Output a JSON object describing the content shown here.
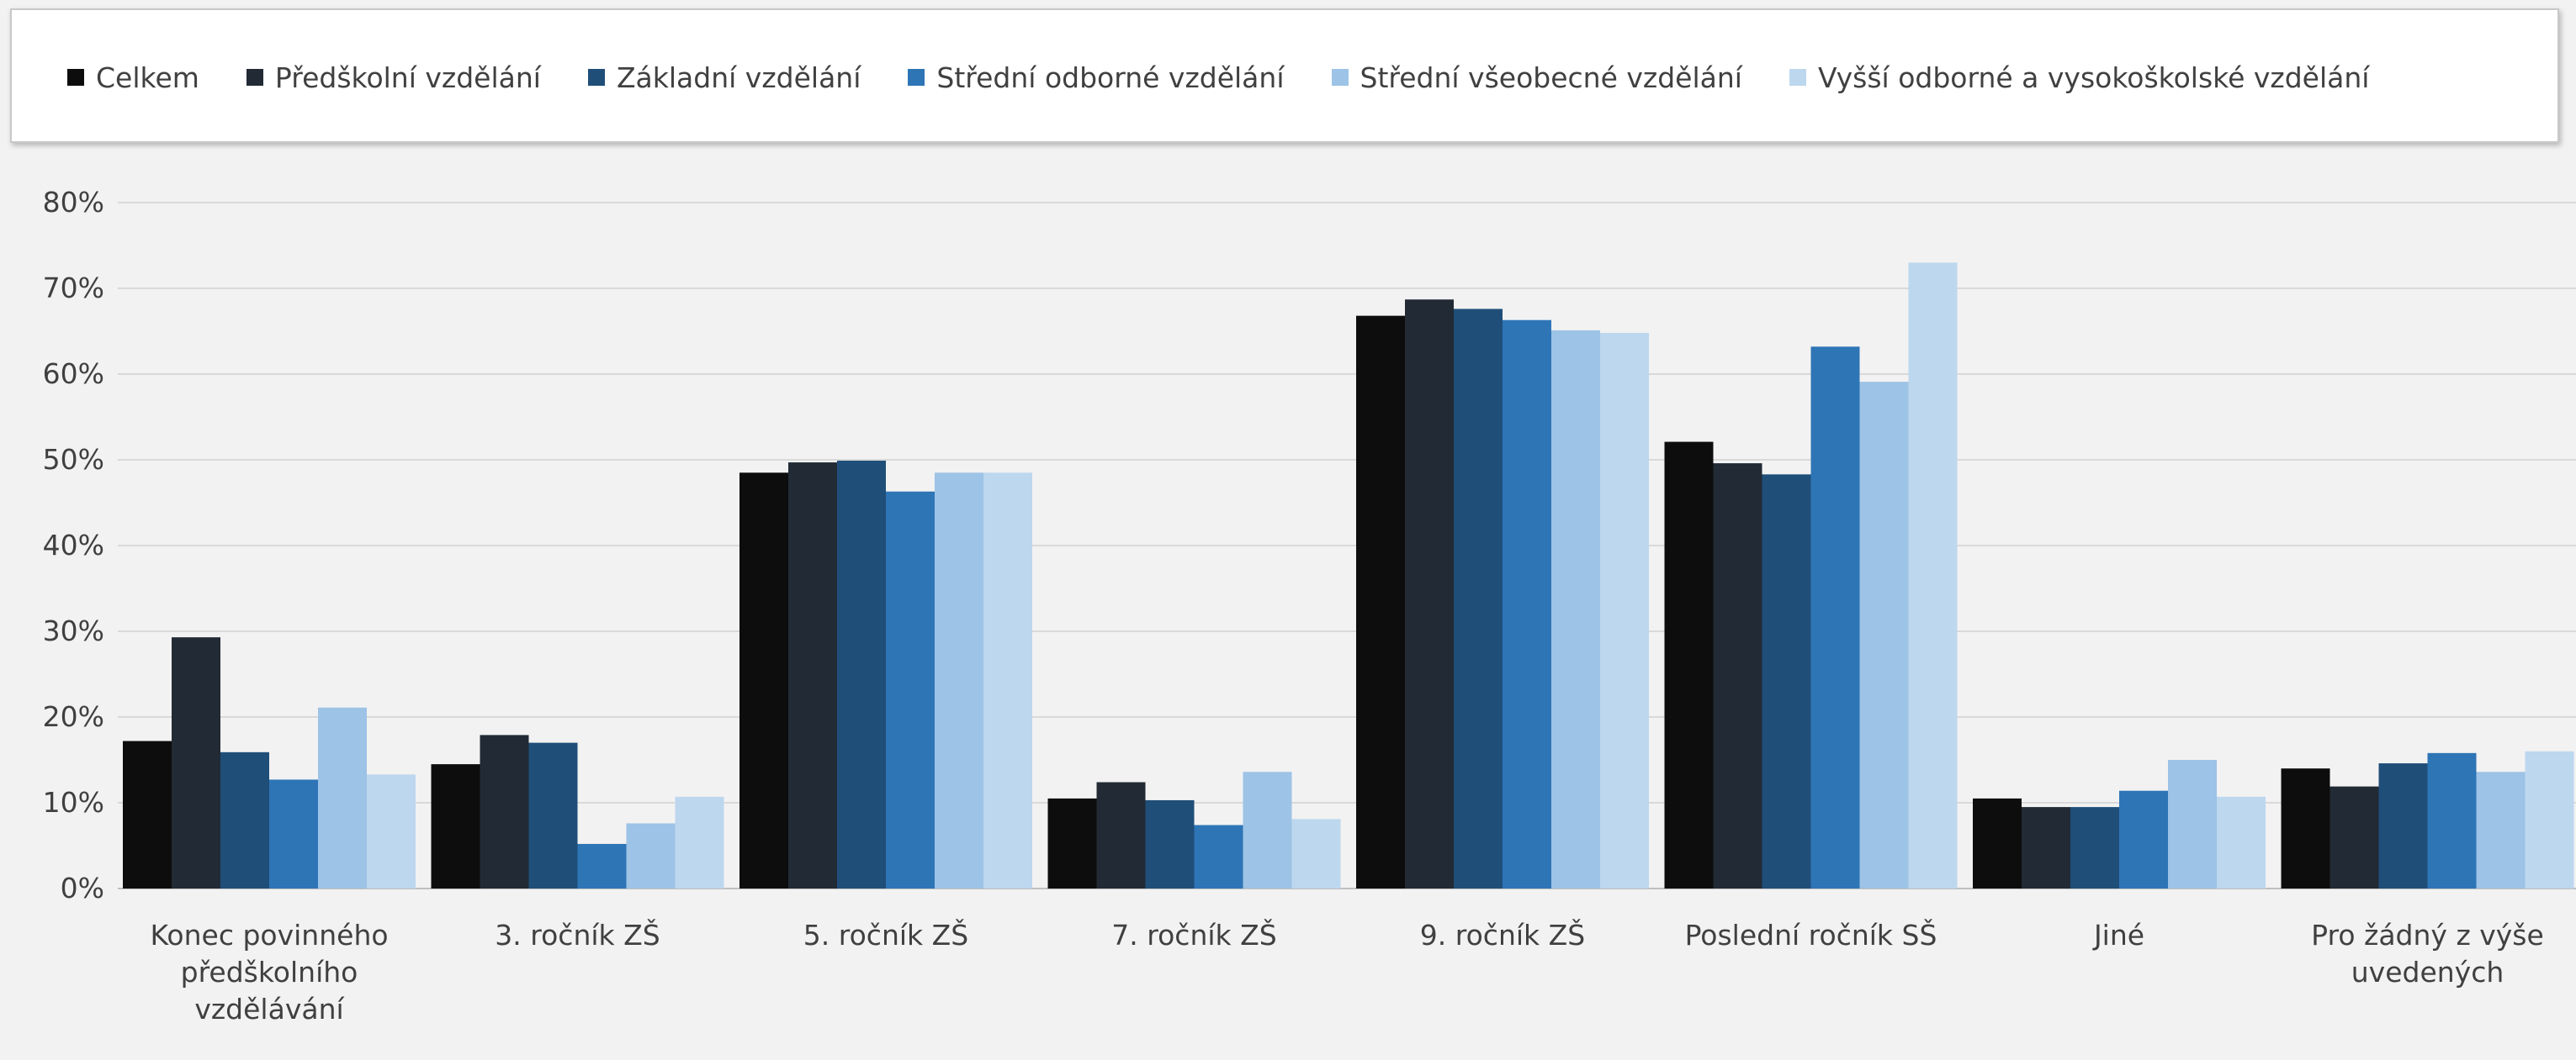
{
  "chart_data": {
    "type": "bar",
    "title": "",
    "xlabel": "",
    "ylabel": "",
    "ylim": [
      0,
      80
    ],
    "yticks": [
      "0%",
      "10%",
      "20%",
      "30%",
      "40%",
      "50%",
      "60%",
      "70%",
      "80%"
    ],
    "grid": true,
    "legend_position": "top",
    "categories": [
      "Konec povinného předškolního vzdělávání",
      "3. ročník ZŠ",
      "5. ročník ZŠ",
      "7. ročník ZŠ",
      "9. ročník ZŠ",
      "Poslední ročník SŠ",
      "Jiné",
      "Pro žádný z výše uvedených"
    ],
    "category_lines": [
      [
        "Konec povinného",
        "předškolního",
        "vzdělávání"
      ],
      [
        "3. ročník ZŠ"
      ],
      [
        "5. ročník ZŠ"
      ],
      [
        "7. ročník ZŠ"
      ],
      [
        "9. ročník ZŠ"
      ],
      [
        "Poslední ročník SŠ"
      ],
      [
        "Jiné"
      ],
      [
        "Pro žádný z výše",
        "uvedených"
      ]
    ],
    "series": [
      {
        "name": "Celkem",
        "color": "#0d0d0d",
        "values": [
          17.2,
          14.5,
          48.5,
          10.5,
          66.8,
          52.1,
          10.5,
          14.0
        ]
      },
      {
        "name": "Předškolní vzdělání",
        "color": "#222a35",
        "values": [
          29.3,
          17.9,
          49.7,
          12.4,
          68.7,
          49.6,
          9.5,
          11.9
        ]
      },
      {
        "name": "Základní vzdělání",
        "color": "#1f4e79",
        "values": [
          15.9,
          17.0,
          49.9,
          10.3,
          67.6,
          48.3,
          9.5,
          14.6
        ]
      },
      {
        "name": "Střední odborné vzdělání",
        "color": "#2e75b6",
        "values": [
          12.7,
          5.2,
          46.3,
          7.4,
          66.3,
          63.2,
          11.4,
          15.8
        ]
      },
      {
        "name": "Střední všeobecné vzdělání",
        "color": "#9dc3e6",
        "values": [
          21.1,
          7.6,
          48.5,
          13.6,
          65.1,
          59.1,
          15.0,
          13.6
        ]
      },
      {
        "name": "Vyšší odborné a vysokoškolské vzdělání",
        "color": "#bdd7ee",
        "values": [
          13.3,
          10.7,
          48.5,
          8.1,
          64.8,
          73.0,
          10.7,
          16.0
        ]
      }
    ]
  }
}
